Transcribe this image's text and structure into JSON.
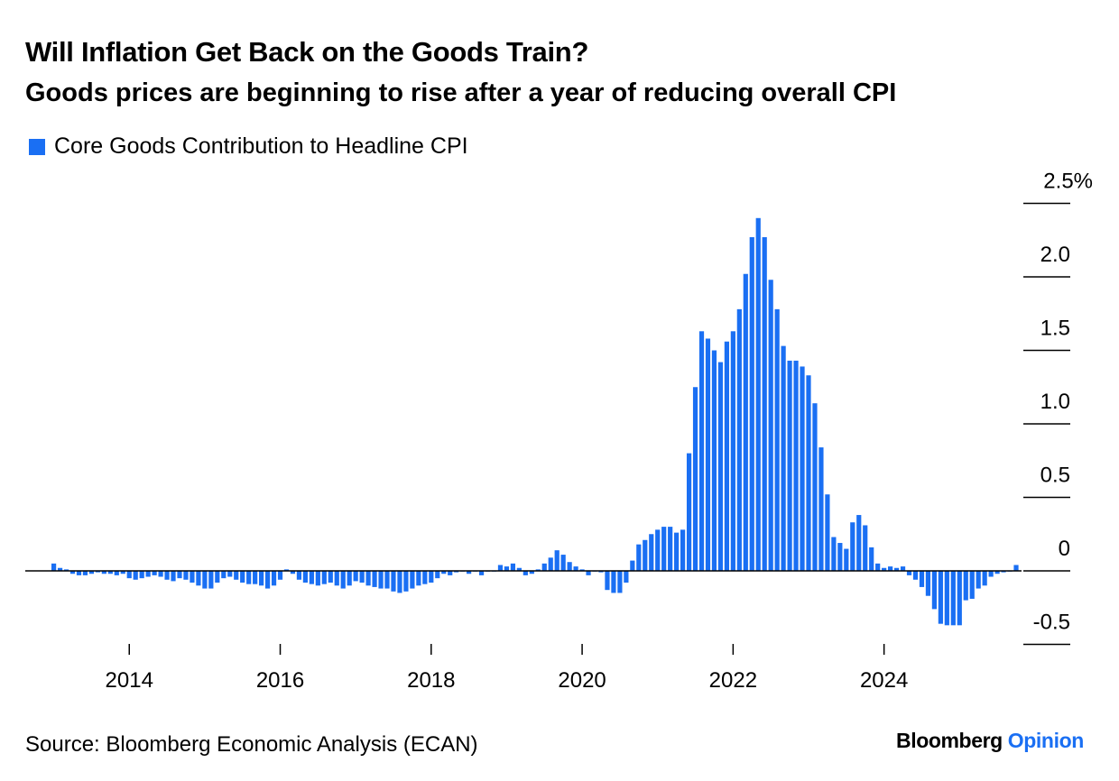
{
  "header": {
    "title": "Will Inflation Get Back on the Goods Train?",
    "subtitle": "Goods prices are beginning to rise after a year of reducing overall CPI"
  },
  "footer": {
    "source": "Source: Bloomberg Economic Analysis (ECAN)",
    "logo_brand": "Bloomberg",
    "logo_product": "Opinion"
  },
  "colors": {
    "bar": "#1a6ff3",
    "axis": "#000000",
    "accent": "#1a6ff3"
  },
  "chart_data": {
    "type": "bar",
    "series": [
      {
        "name": "Core Goods Contribution to Headline CPI",
        "frequency": "monthly",
        "start": "2013-01",
        "values": [
          0.05,
          0.02,
          0.01,
          -0.02,
          -0.03,
          -0.03,
          -0.02,
          -0.01,
          -0.02,
          -0.02,
          -0.03,
          -0.02,
          -0.05,
          -0.06,
          -0.05,
          -0.04,
          -0.03,
          -0.04,
          -0.06,
          -0.07,
          -0.05,
          -0.06,
          -0.08,
          -0.1,
          -0.12,
          -0.12,
          -0.08,
          -0.05,
          -0.04,
          -0.06,
          -0.08,
          -0.09,
          -0.09,
          -0.1,
          -0.12,
          -0.1,
          -0.06,
          0.01,
          -0.02,
          -0.06,
          -0.08,
          -0.09,
          -0.1,
          -0.09,
          -0.08,
          -0.1,
          -0.12,
          -0.1,
          -0.07,
          -0.08,
          -0.1,
          -0.11,
          -0.12,
          -0.12,
          -0.14,
          -0.15,
          -0.14,
          -0.12,
          -0.1,
          -0.09,
          -0.08,
          -0.05,
          -0.02,
          -0.03,
          -0.01,
          0.0,
          -0.02,
          0.0,
          -0.03,
          0.0,
          0.0,
          0.04,
          0.03,
          0.05,
          0.02,
          -0.03,
          -0.02,
          0.01,
          0.05,
          0.09,
          0.14,
          0.11,
          0.06,
          0.03,
          0.01,
          -0.03,
          0.0,
          -0.01,
          -0.13,
          -0.15,
          -0.15,
          -0.08,
          0.07,
          0.18,
          0.21,
          0.25,
          0.28,
          0.3,
          0.3,
          0.26,
          0.28,
          0.8,
          1.25,
          1.63,
          1.58,
          1.5,
          1.42,
          1.56,
          1.63,
          1.78,
          2.02,
          2.27,
          2.4,
          2.27,
          1.98,
          1.78,
          1.53,
          1.43,
          1.43,
          1.39,
          1.33,
          1.14,
          0.84,
          0.52,
          0.23,
          0.19,
          0.15,
          0.33,
          0.38,
          0.31,
          0.16,
          0.05,
          0.02,
          0.03,
          0.02,
          0.03,
          -0.03,
          -0.06,
          -0.11,
          -0.17,
          -0.26,
          -0.36,
          -0.37,
          -0.37,
          -0.37,
          -0.2,
          -0.19,
          -0.12,
          -0.1,
          -0.04,
          -0.02,
          -0.01,
          0.0,
          0.04
        ]
      }
    ],
    "x_axis": {
      "tick_labels": [
        "2014",
        "2016",
        "2018",
        "2020",
        "2022",
        "2024"
      ],
      "range": [
        "2013-01",
        "2026-12"
      ]
    },
    "y_axis": {
      "tick_values": [
        2.5,
        2.0,
        1.5,
        1.0,
        0.5,
        0,
        -0.5
      ],
      "tick_labels": [
        "2.5%",
        "2.0",
        "1.5",
        "1.0",
        "0.5",
        "0",
        "-0.5"
      ],
      "ylim": [
        -0.5,
        2.5
      ],
      "position": "right"
    },
    "grid": false,
    "legend": {
      "position": "top-left"
    }
  }
}
